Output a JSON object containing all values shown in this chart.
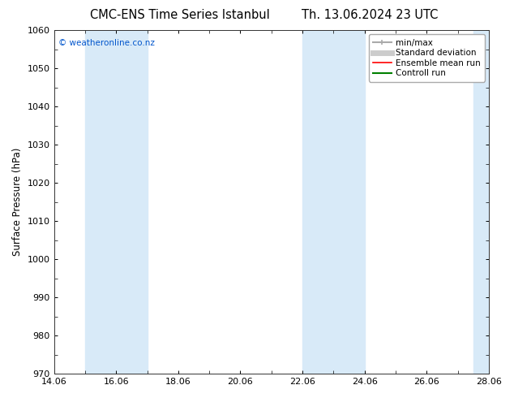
{
  "title_left": "CMC-ENS Time Series Istanbul",
  "title_right": "Th. 13.06.2024 23 UTC",
  "ylabel": "Surface Pressure (hPa)",
  "ylim": [
    970,
    1060
  ],
  "yticks": [
    970,
    980,
    990,
    1000,
    1010,
    1020,
    1030,
    1040,
    1050,
    1060
  ],
  "xlim": [
    0,
    14
  ],
  "xtick_positions": [
    0,
    2,
    4,
    6,
    8,
    10,
    12,
    14
  ],
  "xtick_labels": [
    "14.06",
    "16.06",
    "18.06",
    "20.06",
    "22.06",
    "24.06",
    "26.06",
    "28.06"
  ],
  "watermark": "© weatheronline.co.nz",
  "watermark_color": "#0055cc",
  "background_color": "#ffffff",
  "plot_bg_color": "#ffffff",
  "shaded_bands": [
    {
      "x_start": 1.0,
      "x_end": 1.5,
      "color": "#d8eaf8"
    },
    {
      "x_start": 1.5,
      "x_end": 3.0,
      "color": "#d8eaf8"
    },
    {
      "x_start": 8.0,
      "x_end": 8.5,
      "color": "#d8eaf8"
    },
    {
      "x_start": 8.5,
      "x_end": 10.0,
      "color": "#d8eaf8"
    },
    {
      "x_start": 13.5,
      "x_end": 14.0,
      "color": "#d8eaf8"
    }
  ],
  "legend_items": [
    {
      "label": "min/max",
      "color": "#aaaaaa",
      "lw": 1.5,
      "ls": "-"
    },
    {
      "label": "Standard deviation",
      "color": "#cccccc",
      "lw": 5,
      "ls": "-"
    },
    {
      "label": "Ensemble mean run",
      "color": "#ff0000",
      "lw": 1.2,
      "ls": "-"
    },
    {
      "label": "Controll run",
      "color": "#008000",
      "lw": 1.5,
      "ls": "-"
    }
  ],
  "title_fontsize": 10.5,
  "ylabel_fontsize": 8.5,
  "tick_fontsize": 8,
  "legend_fontsize": 7.5,
  "watermark_fontsize": 7.5,
  "fig_width": 6.34,
  "fig_height": 4.9,
  "dpi": 100
}
